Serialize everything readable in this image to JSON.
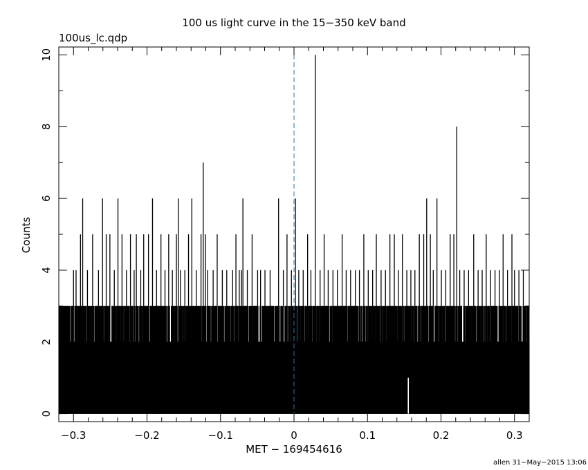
{
  "chart_data": {
    "type": "bar",
    "title": "100 us light curve in the 15−350 keV band",
    "file_label": "100us_lc.qdp",
    "xlabel": "MET − 169454616",
    "ylabel": "Counts",
    "footer": "allen 31−May−2015 13:06",
    "xlim": [
      -0.32,
      0.32
    ],
    "ylim": [
      -0.22,
      10.22
    ],
    "x_ticks": [
      -0.3,
      -0.2,
      -0.1,
      0,
      0.1,
      0.2,
      0.3
    ],
    "x_tick_labels": [
      "−0.3",
      "−0.2",
      "−0.1",
      "0",
      "0.1",
      "0.2",
      "0.3"
    ],
    "y_ticks": [
      0,
      2,
      4,
      6,
      8,
      10
    ],
    "y_tick_labels": [
      "0",
      "2",
      "4",
      "6",
      "8",
      "10"
    ],
    "bin_width": 0.0001,
    "trigger_time": 0,
    "trigger_line_color": "#1f77b4",
    "series_color": "#000000",
    "baseline_range": [
      0,
      3
    ],
    "peaks": [
      {
        "x": -0.3,
        "y": 4
      },
      {
        "x": -0.2965,
        "y": 4
      },
      {
        "x": -0.2905,
        "y": 5
      },
      {
        "x": -0.2875,
        "y": 6
      },
      {
        "x": -0.281,
        "y": 4
      },
      {
        "x": -0.274,
        "y": 5
      },
      {
        "x": -0.266,
        "y": 4
      },
      {
        "x": -0.2605,
        "y": 6
      },
      {
        "x": -0.2555,
        "y": 5
      },
      {
        "x": -0.2505,
        "y": 5
      },
      {
        "x": -0.2445,
        "y": 4
      },
      {
        "x": -0.2395,
        "y": 6
      },
      {
        "x": -0.234,
        "y": 5
      },
      {
        "x": -0.228,
        "y": 4
      },
      {
        "x": -0.2225,
        "y": 5
      },
      {
        "x": -0.2175,
        "y": 4
      },
      {
        "x": -0.2145,
        "y": 5
      },
      {
        "x": -0.2085,
        "y": 4
      },
      {
        "x": -0.2045,
        "y": 5
      },
      {
        "x": -0.198,
        "y": 5
      },
      {
        "x": -0.1925,
        "y": 6
      },
      {
        "x": -0.187,
        "y": 4
      },
      {
        "x": -0.181,
        "y": 5
      },
      {
        "x": -0.1755,
        "y": 4
      },
      {
        "x": -0.1705,
        "y": 5
      },
      {
        "x": -0.1655,
        "y": 4
      },
      {
        "x": -0.16,
        "y": 5
      },
      {
        "x": -0.1575,
        "y": 6
      },
      {
        "x": -0.1545,
        "y": 4
      },
      {
        "x": -0.1485,
        "y": 4
      },
      {
        "x": -0.1435,
        "y": 5
      },
      {
        "x": -0.139,
        "y": 6
      },
      {
        "x": -0.133,
        "y": 4
      },
      {
        "x": -0.1265,
        "y": 5
      },
      {
        "x": -0.1235,
        "y": 7
      },
      {
        "x": -0.1205,
        "y": 5
      },
      {
        "x": -0.1175,
        "y": 4
      },
      {
        "x": -0.11,
        "y": 4
      },
      {
        "x": -0.1045,
        "y": 5
      },
      {
        "x": -0.0975,
        "y": 4
      },
      {
        "x": -0.0915,
        "y": 4
      },
      {
        "x": -0.0835,
        "y": 4
      },
      {
        "x": -0.079,
        "y": 5
      },
      {
        "x": -0.0745,
        "y": 4
      },
      {
        "x": -0.0715,
        "y": 4
      },
      {
        "x": -0.0695,
        "y": 6
      },
      {
        "x": -0.0635,
        "y": 4
      },
      {
        "x": -0.057,
        "y": 5
      },
      {
        "x": -0.0495,
        "y": 4
      },
      {
        "x": -0.0455,
        "y": 4
      },
      {
        "x": -0.0395,
        "y": 4
      },
      {
        "x": -0.0325,
        "y": 4
      },
      {
        "x": -0.021,
        "y": 6
      },
      {
        "x": -0.0145,
        "y": 4
      },
      {
        "x": -0.0095,
        "y": 5
      },
      {
        "x": -0.0035,
        "y": 4
      },
      {
        "x": 0.002,
        "y": 6
      },
      {
        "x": 0.0065,
        "y": 4
      },
      {
        "x": 0.0125,
        "y": 4
      },
      {
        "x": 0.0185,
        "y": 5
      },
      {
        "x": 0.023,
        "y": 4
      },
      {
        "x": 0.029,
        "y": 10
      },
      {
        "x": 0.0355,
        "y": 4
      },
      {
        "x": 0.041,
        "y": 5
      },
      {
        "x": 0.0465,
        "y": 4
      },
      {
        "x": 0.053,
        "y": 4
      },
      {
        "x": 0.059,
        "y": 4
      },
      {
        "x": 0.0655,
        "y": 5
      },
      {
        "x": 0.071,
        "y": 4
      },
      {
        "x": 0.077,
        "y": 4
      },
      {
        "x": 0.0835,
        "y": 4
      },
      {
        "x": 0.089,
        "y": 4
      },
      {
        "x": 0.095,
        "y": 5
      },
      {
        "x": 0.101,
        "y": 4
      },
      {
        "x": 0.107,
        "y": 4
      },
      {
        "x": 0.112,
        "y": 5
      },
      {
        "x": 0.1185,
        "y": 4
      },
      {
        "x": 0.1245,
        "y": 4
      },
      {
        "x": 0.1305,
        "y": 5
      },
      {
        "x": 0.1365,
        "y": 5
      },
      {
        "x": 0.142,
        "y": 4
      },
      {
        "x": 0.1475,
        "y": 5
      },
      {
        "x": 0.1535,
        "y": 4
      },
      {
        "x": 0.159,
        "y": 4
      },
      {
        "x": 0.1645,
        "y": 4
      },
      {
        "x": 0.1705,
        "y": 5
      },
      {
        "x": 0.1765,
        "y": 5
      },
      {
        "x": 0.1805,
        "y": 6
      },
      {
        "x": 0.1855,
        "y": 5
      },
      {
        "x": 0.1895,
        "y": 4
      },
      {
        "x": 0.1945,
        "y": 6
      },
      {
        "x": 0.2005,
        "y": 4
      },
      {
        "x": 0.2065,
        "y": 4
      },
      {
        "x": 0.2125,
        "y": 5
      },
      {
        "x": 0.2175,
        "y": 5
      },
      {
        "x": 0.2215,
        "y": 8
      },
      {
        "x": 0.2255,
        "y": 4
      },
      {
        "x": 0.2315,
        "y": 4
      },
      {
        "x": 0.2375,
        "y": 4
      },
      {
        "x": 0.2445,
        "y": 5
      },
      {
        "x": 0.2505,
        "y": 4
      },
      {
        "x": 0.256,
        "y": 4
      },
      {
        "x": 0.2615,
        "y": 5
      },
      {
        "x": 0.2675,
        "y": 4
      },
      {
        "x": 0.2735,
        "y": 4
      },
      {
        "x": 0.2795,
        "y": 4
      },
      {
        "x": 0.2845,
        "y": 5
      },
      {
        "x": 0.2905,
        "y": 4
      },
      {
        "x": 0.2965,
        "y": 5
      },
      {
        "x": 0.3,
        "y": 4
      },
      {
        "x": 0.306,
        "y": 4
      },
      {
        "x": 0.312,
        "y": 4
      }
    ],
    "zero_gaps": [
      {
        "x": 0.1555,
        "y": 1
      }
    ]
  }
}
